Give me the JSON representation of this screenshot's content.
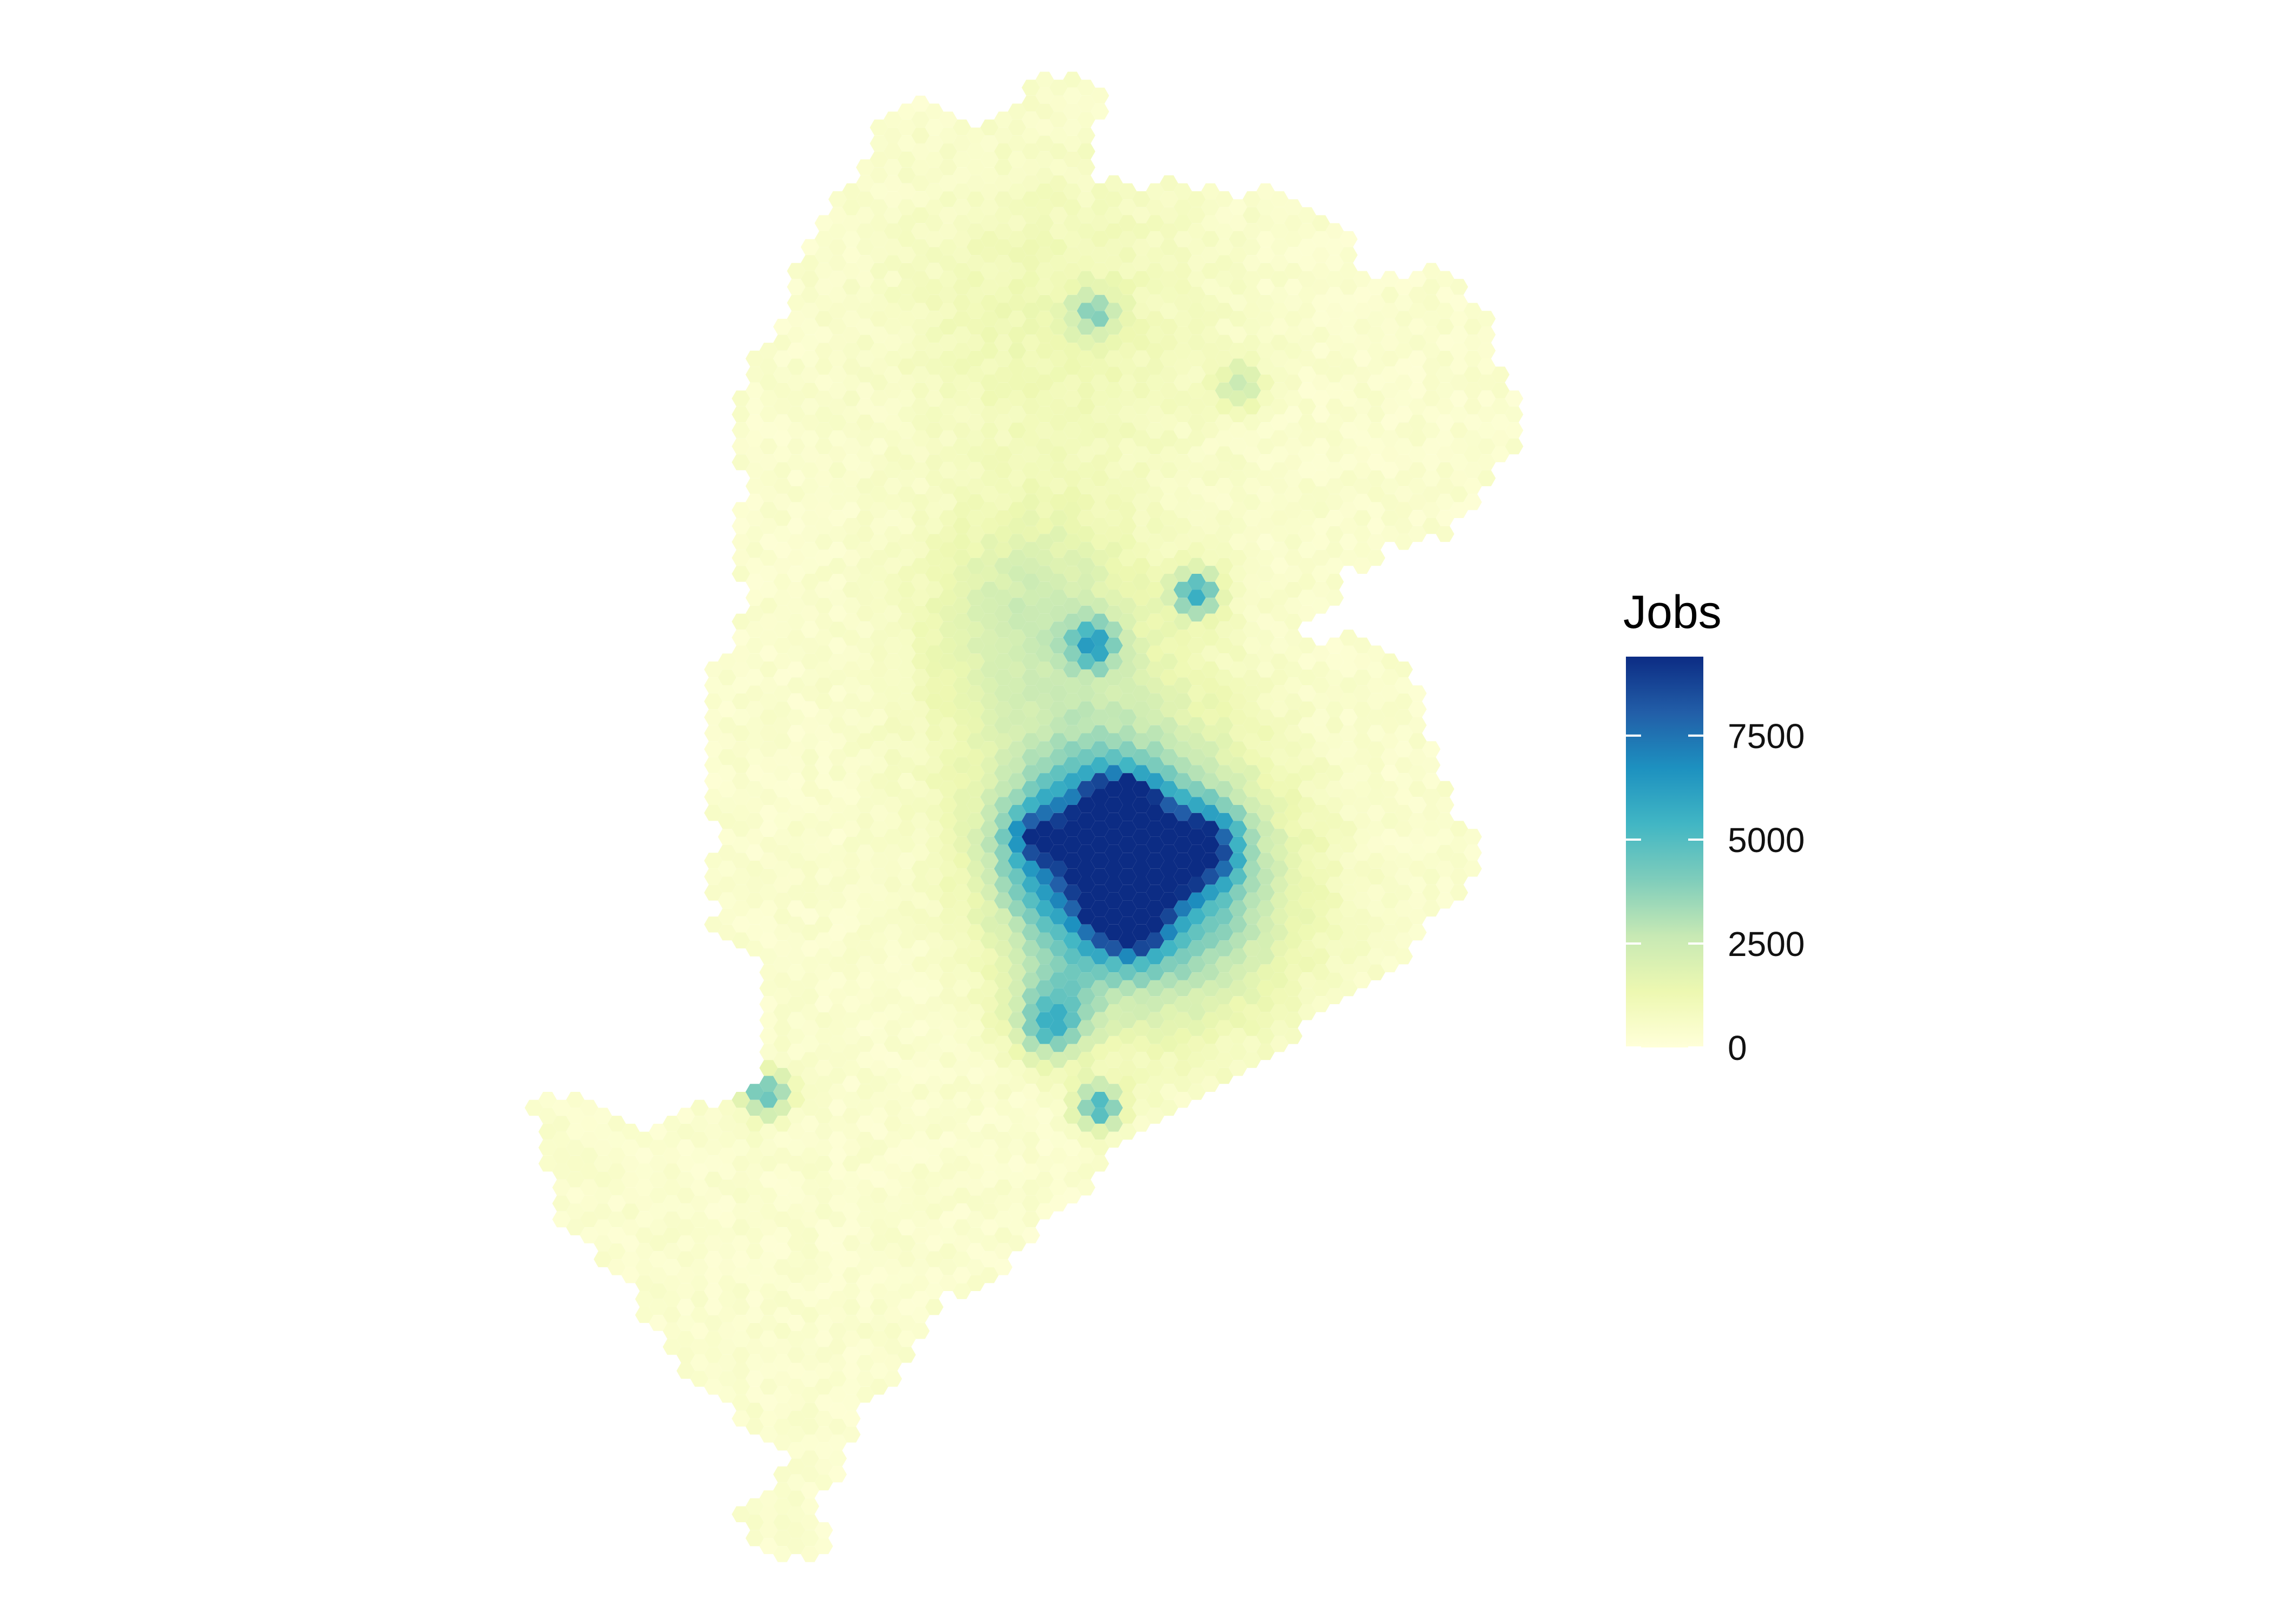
{
  "legend": {
    "title": "Jobs",
    "breaks": [
      {
        "value": 0,
        "label": "0"
      },
      {
        "value": 2500,
        "label": "2500"
      },
      {
        "value": 5000,
        "label": "5000"
      },
      {
        "value": 7500,
        "label": "7500"
      }
    ],
    "range": [
      0,
      9400
    ]
  },
  "palette": {
    "scale": "YlGnBu",
    "stops": [
      "#ffffd9",
      "#edf8b1",
      "#c7e9b4",
      "#7fcdbb",
      "#41b6c4",
      "#1d91c0",
      "#225ea8",
      "#0c2c84"
    ]
  },
  "jobs_summary": {
    "max_cell_jobs": 9400,
    "peak_cells": [
      {
        "approx_jobs": 9000,
        "note": "city centre peak"
      },
      {
        "approx_jobs": 7200
      },
      {
        "approx_jobs": 6800
      },
      {
        "approx_jobs": 6500
      },
      {
        "approx_jobs": 6300
      }
    ]
  }
}
